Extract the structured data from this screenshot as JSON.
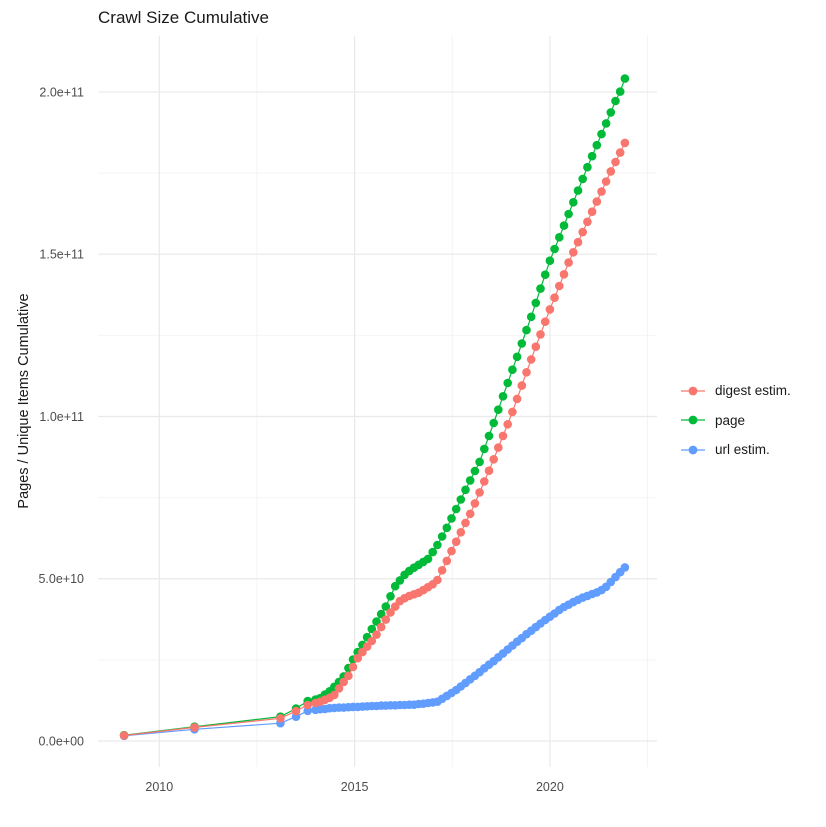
{
  "title": "Crawl Size Cumulative",
  "axes": {
    "y_title": "Pages / Unique Items Cumulative",
    "y_tick_labels": [
      "0.0e+00",
      "5.0e+10",
      "1.0e+11",
      "1.5e+11",
      "2.0e+11"
    ],
    "x_tick_labels": [
      "2010",
      "2015",
      "2020"
    ]
  },
  "legend": [
    {
      "label": "digest estim.",
      "color": "#F8766D"
    },
    {
      "label": "page",
      "color": "#00BA38"
    },
    {
      "label": "url estim.",
      "color": "#619CFF"
    }
  ],
  "colors": {
    "background": "#FFFFFF",
    "grid_major": "#E9E9E9",
    "grid_minor": "#F4F4F4",
    "tick_text": "#4D4D4D",
    "title_text": "#1A1A1A"
  },
  "chart_data": {
    "type": "scatter",
    "title": "Crawl Size Cumulative",
    "xlabel": "",
    "ylabel": "Pages / Unique Items Cumulative",
    "x_unit": "year (decimal)",
    "value_scale": 1000000000.0,
    "values_unit": "billions of pages / unique items (cumulative)",
    "xlim": [
      2008.5,
      2022.7
    ],
    "ylim": [
      0,
      217000000000.0
    ],
    "x_major_ticks": [
      2010,
      2015,
      2020
    ],
    "x_minor_gridlines": [
      2012.5,
      2017.5,
      2022.5
    ],
    "y_major_ticks_billions": [
      0,
      50,
      100,
      150,
      200
    ],
    "y_minor_gridlines_billions": [
      25,
      75,
      125,
      175
    ],
    "grid": true,
    "legend_position": "right",
    "x": [
      2009.1,
      2010.9,
      2013.1,
      2013.5,
      2013.8,
      2014.0,
      2014.12,
      2014.24,
      2014.36,
      2014.48,
      2014.6,
      2014.72,
      2014.84,
      2014.96,
      2015.08,
      2015.2,
      2015.32,
      2015.44,
      2015.56,
      2015.68,
      2015.8,
      2015.92,
      2016.04,
      2016.16,
      2016.28,
      2016.4,
      2016.52,
      2016.64,
      2016.76,
      2016.88,
      2017.0,
      2017.12,
      2017.24,
      2017.36,
      2017.48,
      2017.6,
      2017.72,
      2017.84,
      2017.96,
      2018.08,
      2018.2,
      2018.32,
      2018.44,
      2018.56,
      2018.68,
      2018.8,
      2018.92,
      2019.04,
      2019.16,
      2019.28,
      2019.4,
      2019.52,
      2019.64,
      2019.76,
      2019.88,
      2020.0,
      2020.12,
      2020.24,
      2020.36,
      2020.48,
      2020.6,
      2020.72,
      2020.84,
      2020.96,
      2021.08,
      2021.2,
      2021.32,
      2021.44,
      2021.56,
      2021.68,
      2021.8,
      2021.92
    ],
    "series": [
      {
        "name": "digest estim.",
        "color": "#F8766D",
        "values_billions": [
          1.7,
          4.2,
          7.0,
          9.2,
          11.1,
          11.7,
          12.1,
          12.7,
          13.3,
          14.2,
          16.2,
          18.2,
          20.1,
          22.8,
          25.5,
          27.4,
          29.1,
          30.8,
          32.8,
          35.1,
          37.4,
          39.6,
          41.4,
          43.1,
          44.0,
          44.7,
          45.2,
          45.7,
          46.5,
          47.4,
          48.3,
          49.6,
          52.6,
          55.5,
          58.5,
          61.4,
          64.3,
          67.2,
          70.0,
          73.2,
          76.6,
          80.0,
          83.3,
          86.8,
          90.4,
          94.0,
          97.6,
          101.4,
          105.4,
          109.5,
          113.6,
          117.6,
          121.5,
          125.3,
          129.2,
          133.0,
          136.6,
          140.2,
          143.8,
          147.4,
          150.6,
          153.7,
          156.8,
          160.0,
          163.1,
          166.2,
          169.3,
          172.4,
          175.5,
          178.4,
          181.3,
          184.3
        ]
      },
      {
        "name": "page",
        "color": "#00BA38",
        "values_billions": [
          1.8,
          4.4,
          7.5,
          10.0,
          12.3,
          12.8,
          13.2,
          14.3,
          15.3,
          16.7,
          18.2,
          19.9,
          22.5,
          25.1,
          27.4,
          29.6,
          32.0,
          34.5,
          36.8,
          39.1,
          41.4,
          44.6,
          47.7,
          49.5,
          51.2,
          52.4,
          53.4,
          54.3,
          55.2,
          56.1,
          58.2,
          60.4,
          63.0,
          65.7,
          68.6,
          71.5,
          74.4,
          77.4,
          80.3,
          83.2,
          86.0,
          90.0,
          94.0,
          98.0,
          102.1,
          106.2,
          110.3,
          114.4,
          118.4,
          122.5,
          126.6,
          130.7,
          135.0,
          139.4,
          143.7,
          148.0,
          151.6,
          155.2,
          158.8,
          162.4,
          166.0,
          169.6,
          173.2,
          176.8,
          180.2,
          183.6,
          187.0,
          190.3,
          193.7,
          197.2,
          200.1,
          204.1
        ]
      },
      {
        "name": "url estim.",
        "color": "#619CFF",
        "values_billions": [
          1.6,
          3.6,
          5.5,
          7.5,
          9.3,
          9.6,
          9.8,
          9.9,
          10.1,
          10.2,
          10.3,
          10.3,
          10.4,
          10.5,
          10.5,
          10.6,
          10.7,
          10.8,
          10.8,
          10.9,
          10.9,
          11.0,
          11.0,
          11.1,
          11.1,
          11.2,
          11.2,
          11.4,
          11.5,
          11.7,
          11.9,
          12.1,
          13.0,
          13.9,
          14.8,
          15.7,
          16.8,
          17.9,
          19.0,
          20.1,
          21.2,
          22.4,
          23.5,
          24.6,
          25.8,
          27.0,
          28.2,
          29.4,
          30.6,
          31.7,
          32.9,
          34.0,
          35.1,
          36.2,
          37.3,
          38.3,
          39.3,
          40.4,
          41.3,
          42.0,
          42.8,
          43.5,
          44.2,
          44.7,
          45.3,
          45.8,
          46.5,
          47.5,
          49.0,
          50.5,
          52.0,
          53.5
        ]
      }
    ]
  }
}
